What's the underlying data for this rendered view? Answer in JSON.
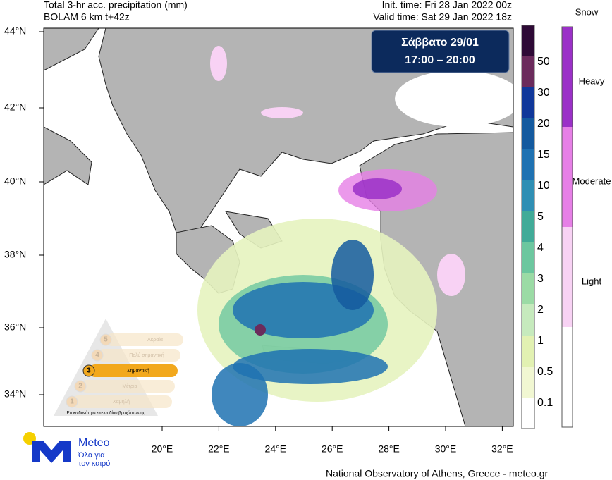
{
  "header": {
    "title": "Total 3-hr acc. precipitation (mm)",
    "model": "BOLAM 6 km t+42z",
    "init_time": "Init. time: Fri 28 Jan 2022 00z",
    "valid_time": "Valid time: Sat 29 Jan 2022 18z"
  },
  "date_box": {
    "day": "Σάββατο 29/01",
    "hours": "17:00 – 20:00"
  },
  "map": {
    "lat_ticks": [
      "44°N",
      "42°N",
      "40°N",
      "38°N",
      "36°N",
      "34°N"
    ],
    "lon_ticks": [
      "20°E",
      "22°E",
      "24°E",
      "26°E",
      "28°E",
      "30°E",
      "32°E"
    ]
  },
  "colorbar": {
    "ticks": [
      0.1,
      0.5,
      1,
      2,
      3,
      4,
      5,
      10,
      15,
      20,
      30,
      50
    ],
    "colors": [
      "#ffffff",
      "#f1f7d2",
      "#e2f1b2",
      "#c6eabd",
      "#9bdba5",
      "#6cc79f",
      "#41ab98",
      "#2f8fb4",
      "#1f72b2",
      "#145a9f",
      "#10379a",
      "#6b2b5c",
      "#2e0a36"
    ]
  },
  "snow_legend": {
    "title": "Snow",
    "levels": [
      "Heavy",
      "Moderate",
      "Light"
    ],
    "colors": [
      "#9b30c8",
      "#e67fe6",
      "#f8d2f4",
      "#ffffff"
    ]
  },
  "hazard_pyramid": {
    "levels": [
      {
        "number": 5,
        "label": "Ακραία"
      },
      {
        "number": 4,
        "label": "Πολύ σημαντική"
      },
      {
        "number": 3,
        "label": "Σημαντική"
      },
      {
        "number": 2,
        "label": "Μέτρια"
      },
      {
        "number": 1,
        "label": "Χαμηλή"
      }
    ],
    "caption": "Επικινδυνότητα επεισοδίου βροχόπτωσης"
  },
  "logo": {
    "name": "Meteo",
    "slogan_line1": "Όλα για",
    "slogan_line2": "τον καιρό"
  },
  "footer": "National Observatory of Athens, Greece - meteo.gr"
}
